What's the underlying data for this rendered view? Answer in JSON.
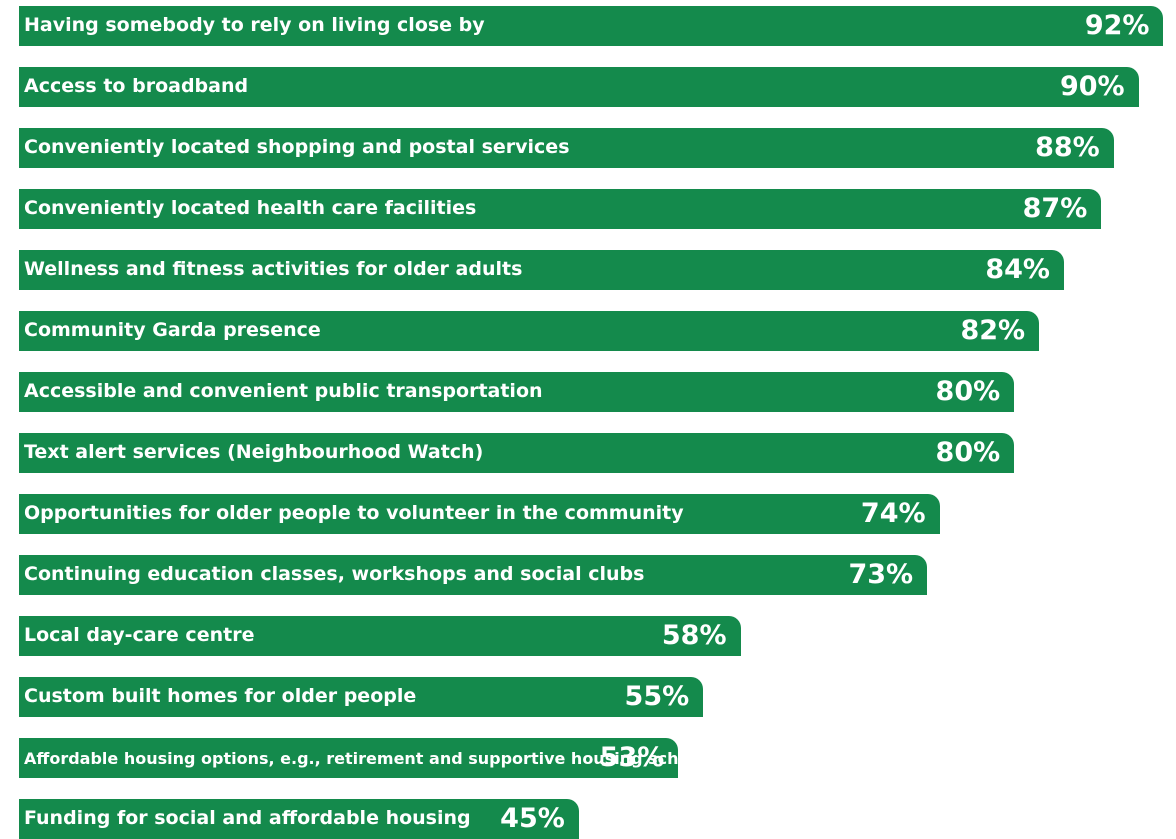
{
  "chart_data": {
    "type": "bar",
    "orientation": "horizontal",
    "bar_color": "#148a4c",
    "xlim": [
      0,
      100
    ],
    "value_suffix": "%",
    "categories": [
      "Having somebody to rely on living close by",
      "Access to broadband",
      "Conveniently located shopping and postal services",
      "Conveniently located health care facilities",
      "Wellness and fitness activities for older adults",
      "Community Garda presence",
      "Accessible and convenient public transportation",
      "Text alert services (Neighbourhood Watch)",
      "Opportunities for older people to volunteer in the community",
      "Continuing education classes, workshops and social clubs",
      "Local day-care centre",
      "Custom built homes for older people",
      "Affordable housing options, e.g., retirement and supportive housing schemes",
      "Funding for social and affordable housing"
    ],
    "values": [
      92,
      90,
      88,
      87,
      84,
      82,
      80,
      80,
      74,
      73,
      58,
      55,
      53,
      45
    ],
    "value_labels": [
      "92%",
      "90%",
      "88%",
      "87%",
      "84%",
      "82%",
      "80%",
      "80%",
      "74%",
      "73%",
      "58%",
      "55%",
      "53%",
      "45%"
    ]
  }
}
